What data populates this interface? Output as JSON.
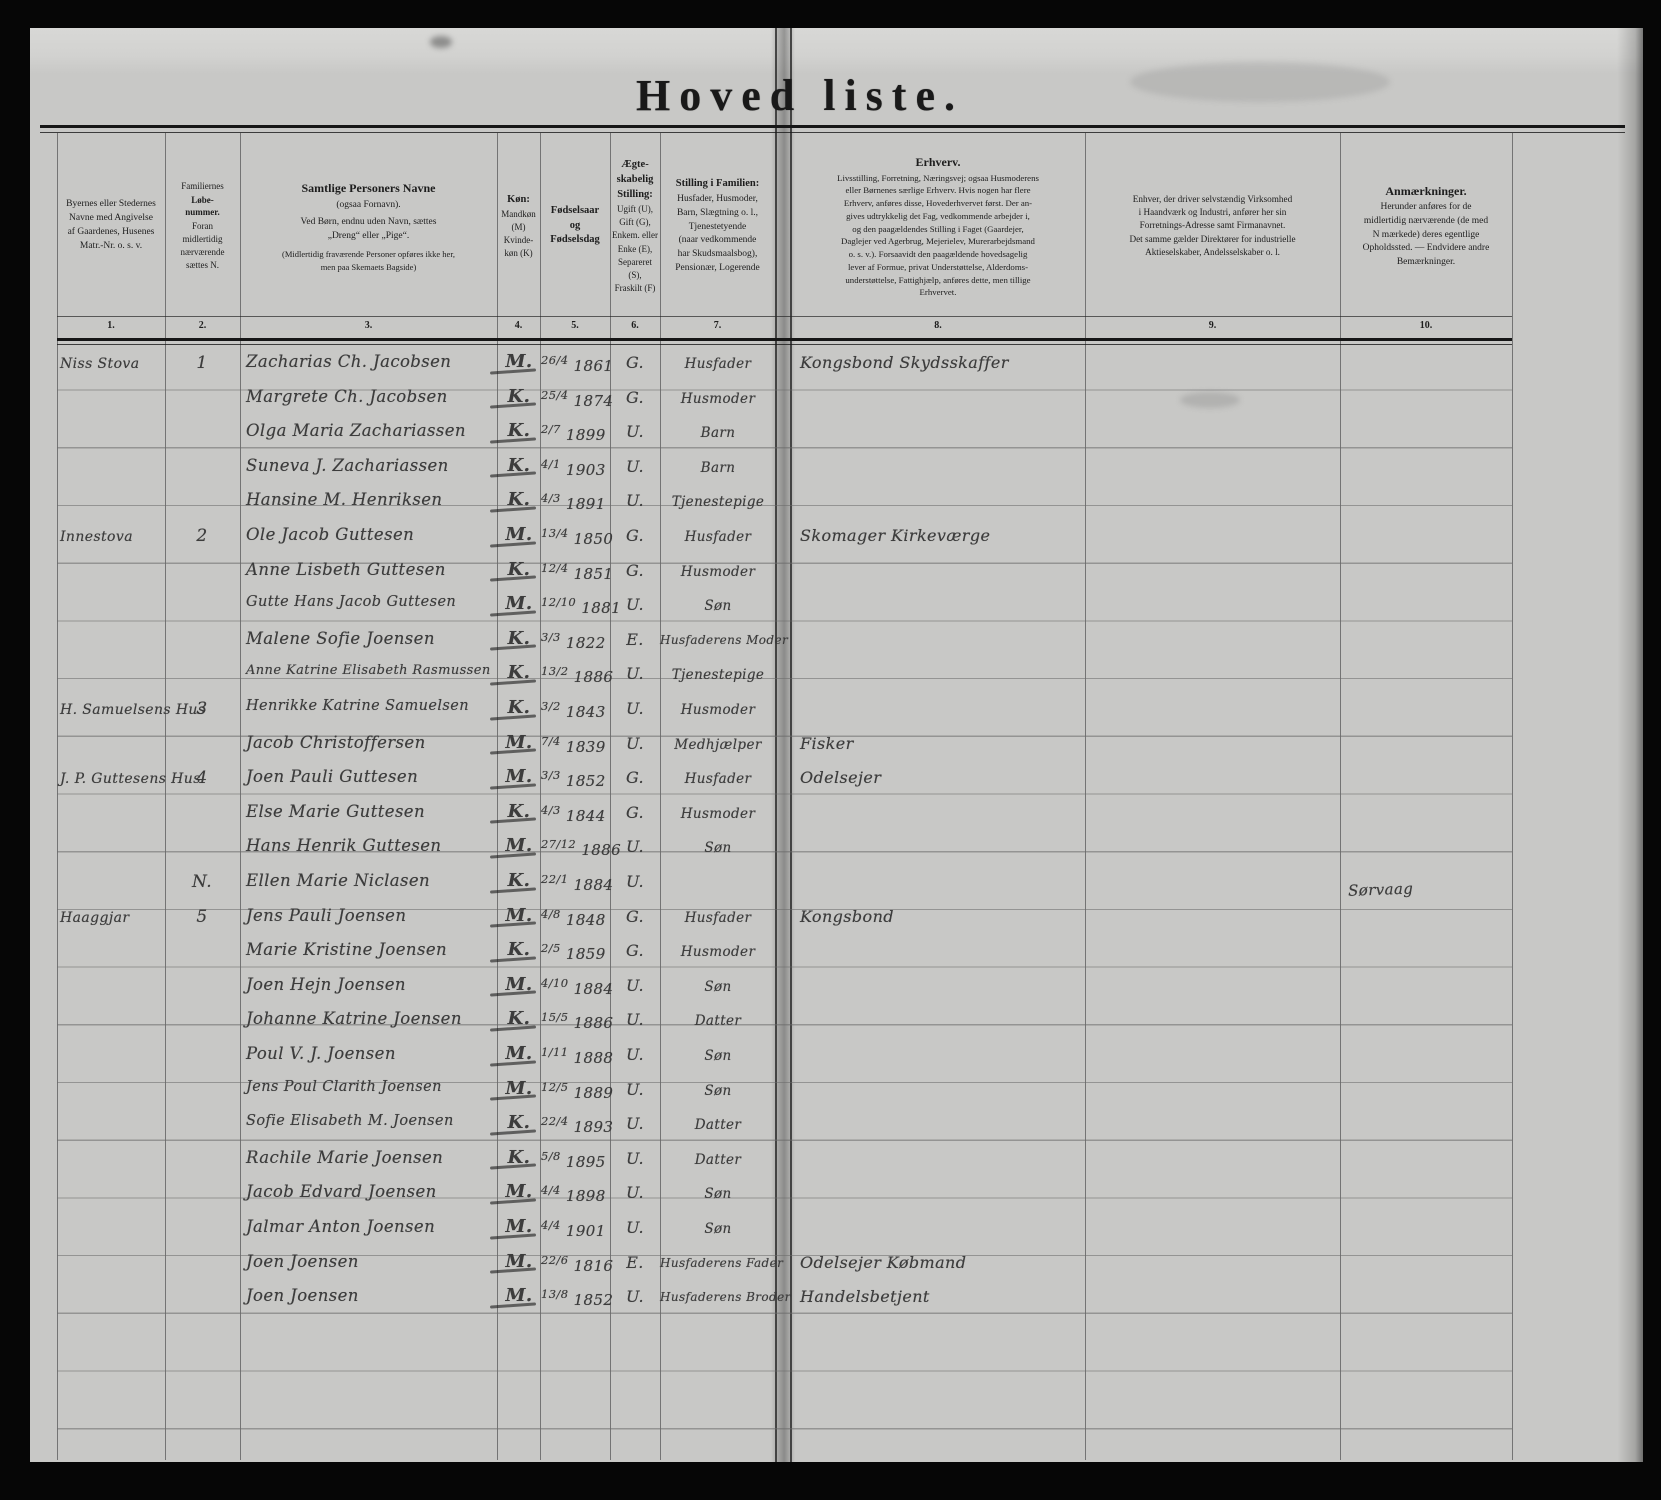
{
  "colors": {
    "paper": "#c8c8c6",
    "print_ink": "#1d1d1d",
    "hand_ink": "#3c3c3c",
    "background": "#060606"
  },
  "title": "Hoved liste.",
  "columns": [
    {
      "num": "1.",
      "body": "Byernes eller Stedernes\nNavne med Angivelse\naf Gaardenes, Husenes\nMatr.-Nr. o. s. v."
    },
    {
      "num": "2.",
      "pre": "Familiernes",
      "title": "Løbe-\nnummer.",
      "body": "Foran\nmidlertidig\nnærværende\nsættes N."
    },
    {
      "num": "3.",
      "title": "Samtlige Personers Navne",
      "sub": "(ogsaa Fornavn).",
      "body": "Ved Børn, endnu uden Navn, sættes\n„Dreng“ eller „Pige“.",
      "note": "(Midlertidig fraværende Personer opføres ikke her,\nmen paa Skemaets Bagside)"
    },
    {
      "num": "4.",
      "title": "Køn:",
      "body": "Mandkøn\n(M)\nKvinde-\nkøn (K)"
    },
    {
      "num": "5.",
      "title": "Fødselsaar\nog\nFødselsdag"
    },
    {
      "num": "6.",
      "title": "Ægte-\nskabelig\nStilling:",
      "body": "Ugift (U),\nGift (G),\nEnkem. eller\nEnke (E),\nSepareret\n(S),\nFraskilt (F)"
    },
    {
      "num": "7.",
      "title": "Stilling i Familien:",
      "body": "Husfader, Husmoder,\nBarn, Slægtning o. l.,\nTjenestetyende\n(naar vedkommende\nhar Skudsmaalsbog),\nPensionær, Logerende"
    },
    {
      "num": "8.",
      "title": "Erhverv.",
      "body": "Livsstilling, Forretning, Næringsvej; ogsaa Husmoderens\neller Børnenes særlige Erhverv.  Hvis nogen har flere\nErhverv, anføres disse, Hovederhvervet først.  Der an-\ngives udtrykkelig det Fag, vedkommende arbejder i,\nog den paagældendes Stilling i Faget (Gaardejer,\nDaglejer ved Agerbrug, Mejerielev, Murerarbejdsmand\no. s. v.).  Forsaavidt den paagældende hovedsagelig\nlever af Formue, privat Understøttelse, Alderdoms-\nunderstøttelse, Fattighjælp, anføres dette, men tillige\nErhvervet."
    },
    {
      "num": "9.",
      "body": "Enhver, der driver selvstændig Virksomhed\ni Haandværk og Industri, anfører her sin\nForretnings-Adresse samt Firmanavnet.\nDet samme gælder Direktører for industrielle\nAktieselskaber, Andelsselskaber o. l."
    },
    {
      "num": "10.",
      "title": "Anmærkninger.",
      "body": "Herunder anføres for de\nmidlertidig nærværende (de med\nN mærkede) deres egentlige\nOpholdssted. — Endvidere andre\nBemærkninger."
    }
  ],
  "rows": [
    {
      "place": "Niss Stova",
      "nr": "1",
      "name": "Zacharias Ch. Jacobsen",
      "sex": "M.",
      "date": "26/4 1861",
      "civil": "G.",
      "family": "Husfader",
      "occupation": "Kongsbond Skydsskaffer",
      "remarks": ""
    },
    {
      "place": "",
      "nr": "",
      "name": "Margrete Ch. Jacobsen",
      "sex": "K.",
      "date": "25/4 1874",
      "civil": "G.",
      "family": "Husmoder",
      "occupation": "",
      "remarks": ""
    },
    {
      "place": "",
      "nr": "",
      "name": "Olga Maria Zachariassen",
      "sex": "K.",
      "date": "2/7 1899",
      "civil": "U.",
      "family": "Barn",
      "occupation": "",
      "remarks": ""
    },
    {
      "place": "",
      "nr": "",
      "name": "Suneva J. Zachariassen",
      "sex": "K.",
      "date": "4/1 1903",
      "civil": "U.",
      "family": "Barn",
      "occupation": "",
      "remarks": ""
    },
    {
      "place": "",
      "nr": "",
      "name": "Hansine M. Henriksen",
      "sex": "K.",
      "date": "4/3 1891",
      "civil": "U.",
      "family": "Tjenestepige",
      "occupation": "",
      "remarks": ""
    },
    {
      "place": "Innestova",
      "nr": "2",
      "name": "Ole Jacob Guttesen",
      "sex": "M.",
      "date": "13/4 1850",
      "civil": "G.",
      "family": "Husfader",
      "occupation": "Skomager Kirkeværge",
      "remarks": ""
    },
    {
      "place": "",
      "nr": "",
      "name": "Anne Lisbeth Guttesen",
      "sex": "K.",
      "date": "12/4 1851",
      "civil": "G.",
      "family": "Husmoder",
      "occupation": "",
      "remarks": ""
    },
    {
      "place": "",
      "nr": "",
      "name": "Gutte Hans Jacob Guttesen",
      "sex": "M.",
      "date": "12/10 1881",
      "civil": "U.",
      "family": "Søn",
      "occupation": "",
      "remarks": ""
    },
    {
      "place": "",
      "nr": "",
      "name": "Malene Sofie Joensen",
      "sex": "K.",
      "date": "3/3 1822",
      "civil": "E.",
      "family": "Husfaderens Moder",
      "occupation": "",
      "remarks": ""
    },
    {
      "place": "",
      "nr": "",
      "name": "Anne Katrine Elisabeth Rasmussen",
      "sex": "K.",
      "date": "13/2 1886",
      "civil": "U.",
      "family": "Tjenestepige",
      "occupation": "",
      "remarks": ""
    },
    {
      "place": "H. Samuelsens Hus",
      "nr": "3",
      "name": "Henrikke Katrine Samuelsen",
      "sex": "K.",
      "date": "3/2 1843",
      "civil": "U.",
      "family": "Husmoder",
      "occupation": "",
      "remarks": ""
    },
    {
      "place": "",
      "nr": "",
      "name": "Jacob Christoffersen",
      "sex": "M.",
      "date": "7/4 1839",
      "civil": "U.",
      "family": "Medhjælper",
      "occupation": "Fisker",
      "remarks": ""
    },
    {
      "place": "J. P. Guttesens Hus",
      "nr": "4",
      "name": "Joen Pauli Guttesen",
      "sex": "M.",
      "date": "3/3 1852",
      "civil": "G.",
      "family": "Husfader",
      "occupation": "Odelsejer",
      "remarks": ""
    },
    {
      "place": "",
      "nr": "",
      "name": "Else Marie Guttesen",
      "sex": "K.",
      "date": "4/3 1844",
      "civil": "G.",
      "family": "Husmoder",
      "occupation": "",
      "remarks": ""
    },
    {
      "place": "",
      "nr": "",
      "name": "Hans Henrik Guttesen",
      "sex": "M.",
      "date": "27/12 1886",
      "civil": "U.",
      "family": "Søn",
      "occupation": "",
      "remarks": ""
    },
    {
      "place": "",
      "nr": "N.",
      "name": "Ellen Marie Niclasen",
      "sex": "K.",
      "date": "22/1 1884",
      "civil": "U.",
      "family": "",
      "occupation": "",
      "remarks": "Sørvaag"
    },
    {
      "place": "Haaggjar",
      "nr": "5",
      "name": "Jens Pauli Joensen",
      "sex": "M.",
      "date": "4/8 1848",
      "civil": "G.",
      "family": "Husfader",
      "occupation": "Kongsbond",
      "remarks": ""
    },
    {
      "place": "",
      "nr": "",
      "name": "Marie Kristine Joensen",
      "sex": "K.",
      "date": "2/5 1859",
      "civil": "G.",
      "family": "Husmoder",
      "occupation": "",
      "remarks": ""
    },
    {
      "place": "",
      "nr": "",
      "name": "Joen Hejn Joensen",
      "sex": "M.",
      "date": "4/10 1884",
      "civil": "U.",
      "family": "Søn",
      "occupation": "",
      "remarks": ""
    },
    {
      "place": "",
      "nr": "",
      "name": "Johanne Katrine Joensen",
      "sex": "K.",
      "date": "15/5 1886",
      "civil": "U.",
      "family": "Datter",
      "occupation": "",
      "remarks": ""
    },
    {
      "place": "",
      "nr": "",
      "name": "Poul V. J. Joensen",
      "sex": "M.",
      "date": "1/11 1888",
      "civil": "U.",
      "family": "Søn",
      "occupation": "",
      "remarks": ""
    },
    {
      "place": "",
      "nr": "",
      "name": "Jens Poul Clarith Joensen",
      "sex": "M.",
      "date": "12/5 1889",
      "civil": "U.",
      "family": "Søn",
      "occupation": "",
      "remarks": ""
    },
    {
      "place": "",
      "nr": "",
      "name": "Sofie Elisabeth M. Joensen",
      "sex": "K.",
      "date": "22/4 1893",
      "civil": "U.",
      "family": "Datter",
      "occupation": "",
      "remarks": ""
    },
    {
      "place": "",
      "nr": "",
      "name": "Rachile Marie Joensen",
      "sex": "K.",
      "date": "5/8 1895",
      "civil": "U.",
      "family": "Datter",
      "occupation": "",
      "remarks": ""
    },
    {
      "place": "",
      "nr": "",
      "name": "Jacob Edvard Joensen",
      "sex": "M.",
      "date": "4/4 1898",
      "civil": "U.",
      "family": "Søn",
      "occupation": "",
      "remarks": ""
    },
    {
      "place": "",
      "nr": "",
      "name": "Jalmar Anton Joensen",
      "sex": "M.",
      "date": "4/4 1901",
      "civil": "U.",
      "family": "Søn",
      "occupation": "",
      "remarks": ""
    },
    {
      "place": "",
      "nr": "",
      "name": "Joen Joensen",
      "sex": "M.",
      "date": "22/6 1816",
      "civil": "E.",
      "family": "Husfaderens Fader",
      "occupation": "Odelsejer Købmand",
      "remarks": ""
    },
    {
      "place": "",
      "nr": "",
      "name": "Joen Joensen",
      "sex": "M.",
      "date": "13/8 1852",
      "civil": "U.",
      "family": "Husfaderens Broder",
      "occupation": "Handelsbetjent",
      "remarks": ""
    }
  ]
}
